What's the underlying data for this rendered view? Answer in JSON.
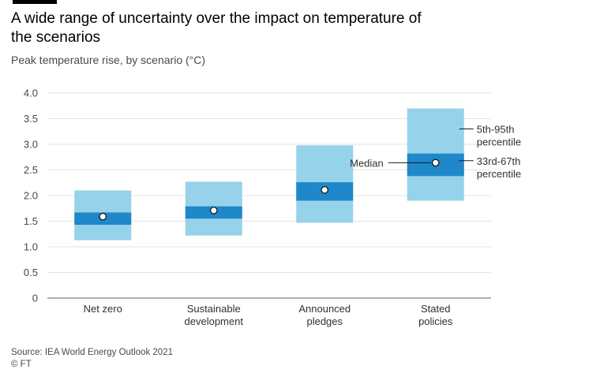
{
  "header": {
    "title": "A wide range of uncertainty over the impact on temperature of the scenarios",
    "subtitle": "Peak temperature rise, by scenario (°C)"
  },
  "footer": {
    "source": "Source: IEA World Energy Outlook 2021",
    "credit": "© FT"
  },
  "colors": {
    "outer_band": "#96d2ea",
    "inner_band": "#1e88c9",
    "median_fill": "#ffffff",
    "median_stroke": "#1a1a1a",
    "grid": "#e6e3df",
    "axis": "#66605c"
  },
  "chart_data": {
    "type": "range",
    "title": "A wide range of uncertainty over the impact on temperature of the scenarios",
    "subtitle": "Peak temperature rise, by scenario (°C)",
    "ylim": [
      0,
      4.0
    ],
    "yticks": [
      0,
      0.5,
      1.0,
      1.5,
      2.0,
      2.5,
      3.0,
      3.5,
      4.0
    ],
    "ytick_labels": [
      "0",
      "0.5",
      "1.0",
      "1.5",
      "2.0",
      "2.5",
      "3.0",
      "3.5",
      "4.0"
    ],
    "grid": true,
    "categories": [
      {
        "label_lines": [
          "Net zero"
        ],
        "p5": 1.13,
        "p33": 1.43,
        "median": 1.59,
        "p67": 1.67,
        "p95": 2.1
      },
      {
        "label_lines": [
          "Sustainable",
          "development"
        ],
        "p5": 1.22,
        "p33": 1.55,
        "median": 1.71,
        "p67": 1.79,
        "p95": 2.27
      },
      {
        "label_lines": [
          "Announced",
          "pledges"
        ],
        "p5": 1.47,
        "p33": 1.9,
        "median": 2.11,
        "p67": 2.26,
        "p95": 2.98
      },
      {
        "label_lines": [
          "Stated",
          "policies"
        ],
        "p5": 1.9,
        "p33": 2.38,
        "median": 2.64,
        "p67": 2.82,
        "p95": 3.7
      }
    ],
    "annotations": {
      "median": "Median",
      "outer": [
        "5th-95th",
        "percentile"
      ],
      "inner": [
        "33rd-67th",
        "percentile"
      ]
    }
  }
}
